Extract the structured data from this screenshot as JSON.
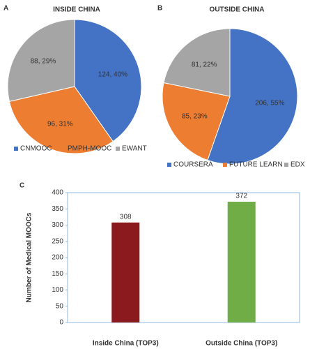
{
  "chart_data": [
    {
      "type": "pie",
      "panel_label": "A",
      "title": "INSIDE CHINA",
      "categories": [
        "CNMOOC",
        "PMPH-MOOC",
        "EWANT"
      ],
      "values": [
        124,
        96,
        88
      ],
      "value_labels": [
        "124, 40%",
        "96, 31%",
        "88, 29%"
      ],
      "colors": [
        "#4472c4",
        "#ed7d31",
        "#a5a5a5"
      ],
      "legend": "bottom"
    },
    {
      "type": "pie",
      "panel_label": "B",
      "title": "OUTSIDE CHINA",
      "categories": [
        "COURSERA",
        "FUTURE LEARN",
        "EDX"
      ],
      "values": [
        206,
        85,
        81
      ],
      "value_labels": [
        "206, 55%",
        "85, 23%",
        "81, 22%"
      ],
      "colors": [
        "#4472c4",
        "#ed7d31",
        "#a5a5a5"
      ],
      "legend": "bottom"
    },
    {
      "type": "bar",
      "panel_label": "C",
      "ylabel": "Number of Medical MOOCs",
      "categories": [
        "Inside China (TOP3)",
        "Outside China (TOP3)"
      ],
      "values": [
        308,
        372
      ],
      "colors": [
        "#8b1a1f",
        "#70ad47"
      ],
      "ylim": [
        0,
        400
      ],
      "yticks": [
        0,
        50,
        100,
        150,
        200,
        250,
        300,
        350,
        400
      ],
      "grid": false
    }
  ]
}
